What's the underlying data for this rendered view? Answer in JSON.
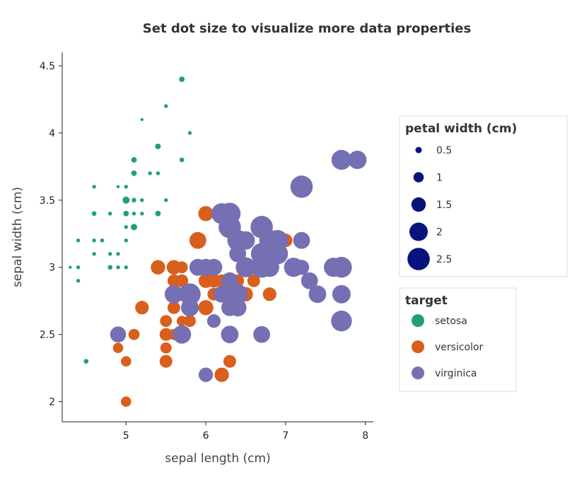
{
  "chart_data": {
    "type": "scatter",
    "title": "Set dot size to visualize more data properties",
    "xlabel": "sepal length (cm)",
    "ylabel": "sepal width (cm)",
    "xlim": [
      4.2,
      8.1
    ],
    "ylim": [
      1.85,
      4.6
    ],
    "x_ticks": [
      5,
      6,
      7,
      8
    ],
    "y_ticks": [
      2,
      2.5,
      3,
      3.5,
      4,
      4.5
    ],
    "x_tick_labels": [
      "5",
      "6",
      "7",
      "8"
    ],
    "y_tick_labels": [
      "2",
      "2.5",
      "3",
      "3.5",
      "4",
      "4.5"
    ],
    "grid": false,
    "size_legend": {
      "title": "petal width (cm)",
      "values": [
        0.5,
        1,
        1.5,
        2,
        2.5
      ],
      "labels": [
        "0.5",
        "1",
        "1.5",
        "2",
        "2.5"
      ]
    },
    "color_legend": {
      "title": "target",
      "placement": "right",
      "entries": [
        {
          "label": "setosa",
          "color": "#229e7e"
        },
        {
          "label": "versicolor",
          "color": "#d95f1c"
        },
        {
          "label": "virginica",
          "color": "#7570b3"
        }
      ]
    },
    "series": [
      {
        "name": "setosa",
        "color": "#229e7e",
        "points": [
          [
            5.1,
            3.5,
            0.2
          ],
          [
            4.9,
            3.0,
            0.2
          ],
          [
            4.7,
            3.2,
            0.2
          ],
          [
            4.6,
            3.1,
            0.2
          ],
          [
            5.0,
            3.6,
            0.2
          ],
          [
            5.4,
            3.9,
            0.4
          ],
          [
            4.6,
            3.4,
            0.3
          ],
          [
            5.0,
            3.4,
            0.2
          ],
          [
            4.4,
            2.9,
            0.2
          ],
          [
            4.9,
            3.1,
            0.1
          ],
          [
            5.4,
            3.7,
            0.2
          ],
          [
            4.8,
            3.4,
            0.2
          ],
          [
            4.8,
            3.0,
            0.1
          ],
          [
            4.3,
            3.0,
            0.1
          ],
          [
            5.8,
            4.0,
            0.2
          ],
          [
            5.7,
            4.4,
            0.4
          ],
          [
            5.4,
            3.9,
            0.4
          ],
          [
            5.1,
            3.5,
            0.3
          ],
          [
            5.7,
            3.8,
            0.3
          ],
          [
            5.1,
            3.8,
            0.3
          ],
          [
            5.4,
            3.4,
            0.2
          ],
          [
            5.1,
            3.7,
            0.4
          ],
          [
            4.6,
            3.6,
            0.2
          ],
          [
            5.1,
            3.3,
            0.5
          ],
          [
            4.8,
            3.4,
            0.2
          ],
          [
            5.0,
            3.0,
            0.2
          ],
          [
            5.0,
            3.4,
            0.4
          ],
          [
            5.2,
            3.5,
            0.2
          ],
          [
            5.2,
            3.4,
            0.2
          ],
          [
            4.7,
            3.2,
            0.2
          ],
          [
            4.8,
            3.1,
            0.2
          ],
          [
            5.4,
            3.4,
            0.4
          ],
          [
            5.2,
            4.1,
            0.1
          ],
          [
            5.5,
            4.2,
            0.2
          ],
          [
            4.9,
            3.1,
            0.2
          ],
          [
            5.0,
            3.2,
            0.2
          ],
          [
            5.5,
            3.5,
            0.2
          ],
          [
            4.9,
            3.6,
            0.1
          ],
          [
            4.4,
            3.0,
            0.2
          ],
          [
            5.1,
            3.4,
            0.2
          ],
          [
            5.0,
            3.5,
            0.3
          ],
          [
            4.5,
            2.3,
            0.3
          ],
          [
            4.4,
            3.2,
            0.2
          ],
          [
            5.0,
            3.5,
            0.6
          ],
          [
            5.1,
            3.8,
            0.4
          ],
          [
            4.8,
            3.0,
            0.3
          ],
          [
            5.1,
            3.8,
            0.2
          ],
          [
            4.6,
            3.2,
            0.2
          ],
          [
            5.3,
            3.7,
            0.2
          ],
          [
            5.0,
            3.3,
            0.2
          ]
        ]
      },
      {
        "name": "versicolor",
        "color": "#d95f1c",
        "points": [
          [
            7.0,
            3.2,
            1.4
          ],
          [
            6.4,
            3.2,
            1.5
          ],
          [
            6.9,
            3.1,
            1.5
          ],
          [
            5.5,
            2.3,
            1.3
          ],
          [
            6.5,
            2.8,
            1.5
          ],
          [
            5.7,
            2.8,
            1.3
          ],
          [
            6.3,
            3.3,
            1.6
          ],
          [
            4.9,
            2.4,
            1.0
          ],
          [
            6.6,
            2.9,
            1.3
          ],
          [
            5.2,
            2.7,
            1.4
          ],
          [
            5.0,
            2.0,
            1.0
          ],
          [
            5.9,
            3.0,
            1.5
          ],
          [
            6.0,
            2.2,
            1.0
          ],
          [
            6.1,
            2.9,
            1.4
          ],
          [
            5.6,
            2.9,
            1.3
          ],
          [
            6.7,
            3.1,
            1.4
          ],
          [
            5.6,
            3.0,
            1.5
          ],
          [
            5.8,
            2.7,
            1.0
          ],
          [
            6.2,
            2.2,
            1.5
          ],
          [
            5.6,
            2.5,
            1.1
          ],
          [
            5.9,
            3.2,
            1.8
          ],
          [
            6.1,
            2.8,
            1.3
          ],
          [
            6.3,
            2.5,
            1.5
          ],
          [
            6.1,
            2.8,
            1.2
          ],
          [
            6.4,
            2.9,
            1.3
          ],
          [
            6.6,
            3.0,
            1.4
          ],
          [
            6.8,
            2.8,
            1.4
          ],
          [
            6.7,
            3.0,
            1.7
          ],
          [
            6.0,
            2.9,
            1.5
          ],
          [
            5.7,
            2.6,
            1.0
          ],
          [
            5.5,
            2.4,
            1.1
          ],
          [
            5.5,
            2.4,
            1.0
          ],
          [
            5.8,
            2.7,
            1.2
          ],
          [
            6.0,
            2.7,
            1.6
          ],
          [
            5.4,
            3.0,
            1.5
          ],
          [
            6.0,
            3.4,
            1.6
          ],
          [
            6.7,
            3.1,
            1.5
          ],
          [
            6.3,
            2.3,
            1.3
          ],
          [
            5.6,
            3.0,
            1.3
          ],
          [
            5.5,
            2.5,
            1.3
          ],
          [
            5.5,
            2.6,
            1.2
          ],
          [
            6.1,
            3.0,
            1.4
          ],
          [
            5.8,
            2.6,
            1.2
          ],
          [
            5.0,
            2.3,
            1.0
          ],
          [
            5.6,
            2.7,
            1.3
          ],
          [
            5.7,
            3.0,
            1.2
          ],
          [
            5.7,
            2.9,
            1.3
          ],
          [
            6.2,
            2.9,
            1.3
          ],
          [
            5.1,
            2.5,
            1.1
          ],
          [
            5.7,
            2.8,
            1.3
          ]
        ]
      },
      {
        "name": "virginica",
        "color": "#7570b3",
        "points": [
          [
            6.3,
            3.3,
            2.5
          ],
          [
            5.8,
            2.7,
            1.9
          ],
          [
            7.1,
            3.0,
            2.1
          ],
          [
            6.3,
            2.9,
            1.8
          ],
          [
            6.5,
            3.0,
            2.2
          ],
          [
            7.6,
            3.0,
            2.1
          ],
          [
            4.9,
            2.5,
            1.7
          ],
          [
            7.3,
            2.9,
            1.8
          ],
          [
            6.7,
            2.5,
            1.8
          ],
          [
            7.2,
            3.6,
            2.5
          ],
          [
            6.5,
            3.2,
            2.0
          ],
          [
            6.4,
            2.7,
            1.9
          ],
          [
            6.8,
            3.0,
            2.1
          ],
          [
            5.7,
            2.5,
            2.0
          ],
          [
            5.8,
            2.8,
            2.4
          ],
          [
            6.4,
            3.2,
            2.3
          ],
          [
            6.5,
            3.0,
            1.8
          ],
          [
            7.7,
            3.8,
            2.2
          ],
          [
            7.7,
            2.6,
            2.3
          ],
          [
            6.0,
            2.2,
            1.5
          ],
          [
            6.9,
            3.2,
            2.3
          ],
          [
            5.6,
            2.8,
            2.0
          ],
          [
            7.7,
            2.8,
            2.0
          ],
          [
            6.3,
            2.7,
            1.8
          ],
          [
            6.7,
            3.3,
            2.1
          ],
          [
            7.2,
            3.2,
            1.8
          ],
          [
            6.2,
            2.8,
            1.8
          ],
          [
            6.1,
            3.0,
            1.8
          ],
          [
            6.4,
            2.8,
            2.1
          ],
          [
            7.2,
            3.0,
            1.6
          ],
          [
            7.4,
            2.8,
            1.9
          ],
          [
            7.9,
            3.8,
            2.0
          ],
          [
            6.4,
            2.8,
            2.2
          ],
          [
            6.3,
            2.8,
            1.5
          ],
          [
            6.1,
            2.6,
            1.4
          ],
          [
            7.7,
            3.0,
            2.3
          ],
          [
            6.3,
            3.4,
            2.4
          ],
          [
            6.4,
            3.1,
            1.8
          ],
          [
            6.0,
            3.0,
            1.8
          ],
          [
            6.9,
            3.1,
            2.1
          ],
          [
            6.7,
            3.1,
            2.4
          ],
          [
            6.9,
            3.1,
            2.3
          ],
          [
            5.8,
            2.7,
            1.9
          ],
          [
            6.8,
            3.2,
            2.3
          ],
          [
            6.7,
            3.3,
            2.5
          ],
          [
            6.7,
            3.0,
            2.3
          ],
          [
            6.3,
            2.5,
            1.9
          ],
          [
            6.5,
            3.0,
            2.0
          ],
          [
            6.2,
            3.4,
            2.3
          ],
          [
            5.9,
            3.0,
            1.8
          ]
        ]
      }
    ]
  }
}
